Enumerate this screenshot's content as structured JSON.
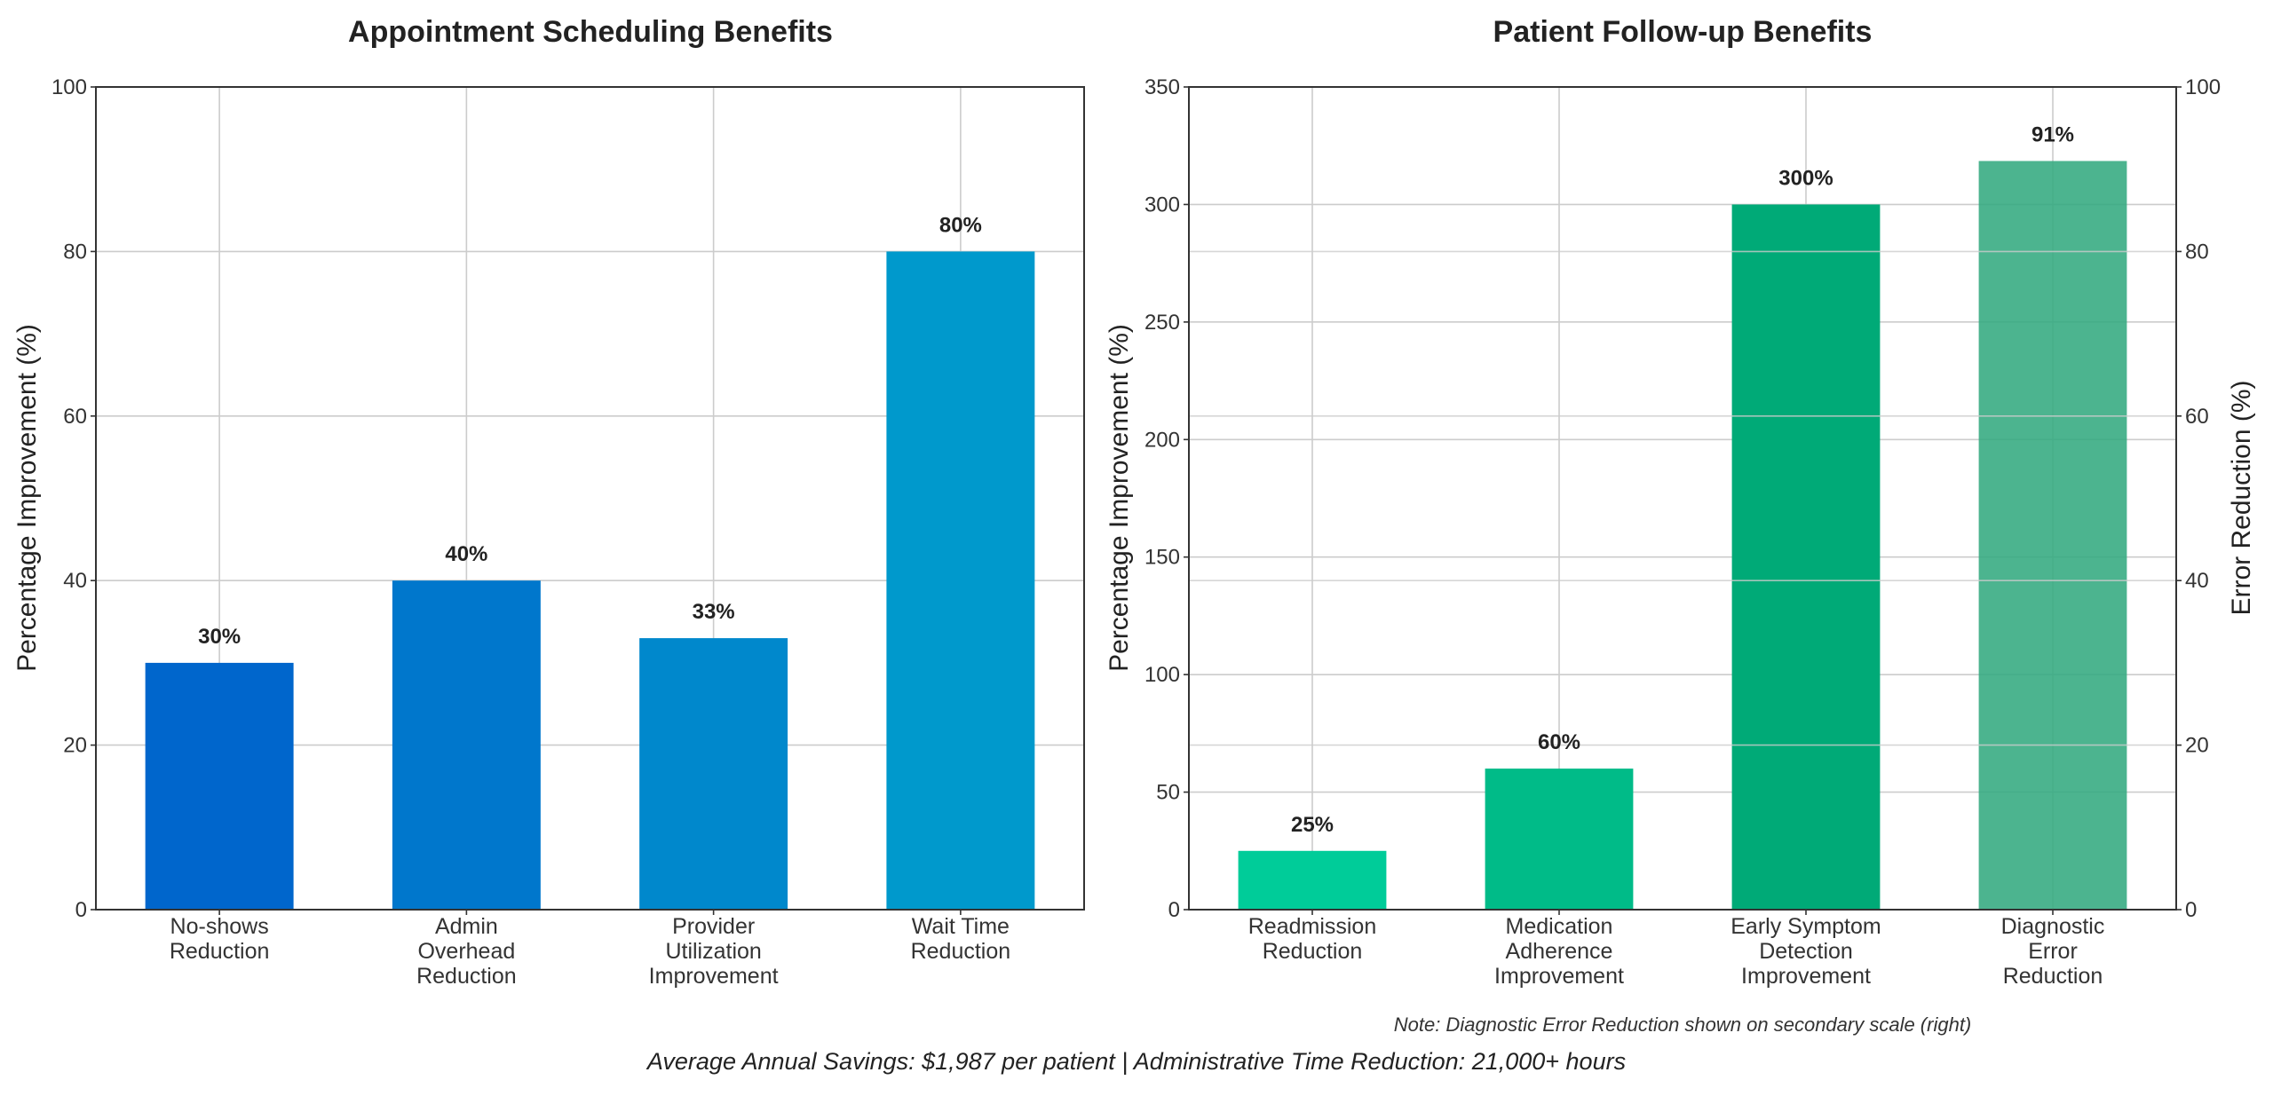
{
  "chart_data": [
    {
      "type": "bar",
      "title": "Appointment Scheduling Benefits",
      "xlabel": "",
      "ylabel": "Percentage Improvement (%)",
      "ylim": [
        0,
        100
      ],
      "yticks": [
        0,
        20,
        40,
        60,
        80,
        100
      ],
      "grid": true,
      "categories": [
        [
          "No-shows",
          "Reduction"
        ],
        [
          "Admin",
          "Overhead",
          "Reduction"
        ],
        [
          "Provider",
          "Utilization",
          "Improvement"
        ],
        [
          "Wait Time",
          "Reduction"
        ]
      ],
      "values": [
        30,
        40,
        33,
        80
      ],
      "value_labels": [
        "30%",
        "40%",
        "33%",
        "80%"
      ],
      "colors": [
        "#0066cc",
        "#0077cc",
        "#0088cc",
        "#0099cc"
      ]
    },
    {
      "type": "bar",
      "title": "Patient Follow-up Benefits",
      "xlabel": "",
      "ylabel": "Percentage Improvement (%)",
      "ylim": [
        0,
        350
      ],
      "yticks": [
        0,
        50,
        100,
        150,
        200,
        250,
        300,
        350
      ],
      "secondary_ylabel": "Error Reduction (%)",
      "secondary_ylim": [
        0,
        100
      ],
      "secondary_yticks": [
        0,
        20,
        40,
        60,
        80,
        100
      ],
      "grid": true,
      "categories": [
        [
          "Readmission",
          "Reduction"
        ],
        [
          "Medication",
          "Adherence",
          "Improvement"
        ],
        [
          "Early Symptom",
          "Detection",
          "Improvement"
        ],
        [
          "Diagnostic",
          "Error",
          "Reduction"
        ]
      ],
      "values": [
        25,
        60,
        300,
        91
      ],
      "axis": [
        "primary",
        "primary",
        "primary",
        "secondary"
      ],
      "value_labels": [
        "25%",
        "60%",
        "300%",
        "91%"
      ],
      "colors": [
        "#00cc99",
        "#00bb88",
        "#00aa77",
        "#33aa80"
      ],
      "note": "Note: Diagnostic Error Reduction shown on secondary scale (right)"
    }
  ],
  "footer": "Average Annual Savings: $1,987 per patient | Administrative Time Reduction: 21,000+ hours"
}
